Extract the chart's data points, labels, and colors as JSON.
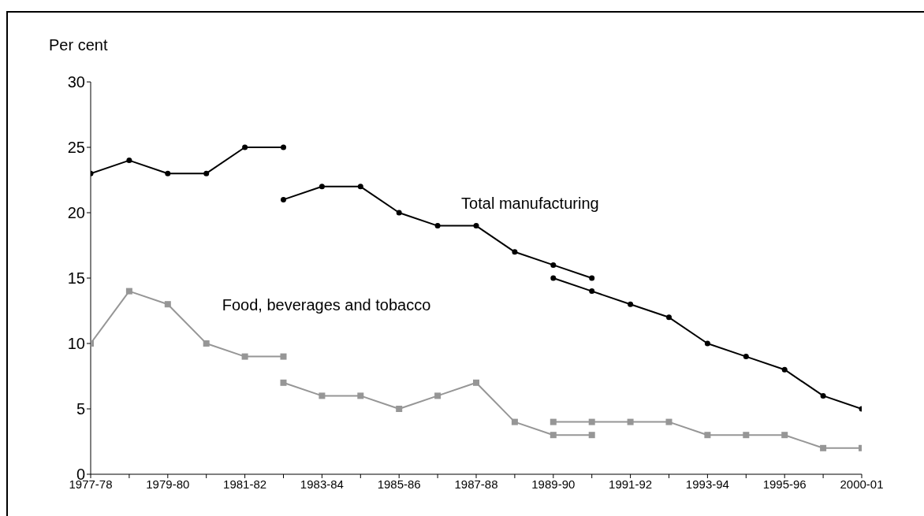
{
  "chart_data": {
    "type": "line",
    "ylabel": "Per cent",
    "categories": [
      "1977-78",
      null,
      "1979-80",
      null,
      "1981-82",
      null,
      "1983-84",
      null,
      "1985-86",
      null,
      "1987-88",
      null,
      "1989-90",
      null,
      "1991-92",
      null,
      "1993-94",
      null,
      "1995-96",
      null,
      "2000-01"
    ],
    "ylim": [
      0,
      30
    ],
    "yticks": [
      0,
      5,
      10,
      15,
      20,
      25,
      30
    ],
    "grid": false,
    "legend": false,
    "series": [
      {
        "color": "#000000",
        "marker": "circle",
        "values": [
          23,
          24,
          23,
          23,
          25,
          25,
          null,
          null,
          null,
          null,
          null,
          null,
          null,
          null,
          null,
          null,
          null,
          null,
          null,
          null,
          null
        ]
      },
      {
        "name": "Total manufacturing",
        "color": "#000000",
        "marker": "circle",
        "values": [
          null,
          null,
          null,
          null,
          null,
          21,
          22,
          22,
          20,
          19,
          19,
          17,
          16,
          15,
          null,
          null,
          null,
          null,
          null,
          null,
          null
        ]
      },
      {
        "color": "#000000",
        "marker": "circle",
        "values": [
          null,
          null,
          null,
          null,
          null,
          null,
          null,
          null,
          null,
          null,
          null,
          null,
          15,
          14,
          13,
          12,
          10,
          9,
          8,
          6,
          5
        ]
      },
      {
        "name": "Food, beverages and tobacco",
        "color": "#969696",
        "marker": "square",
        "values": [
          10,
          14,
          13,
          10,
          9,
          9,
          null,
          null,
          null,
          null,
          null,
          null,
          null,
          null,
          null,
          null,
          null,
          null,
          null,
          null,
          null
        ]
      },
      {
        "color": "#969696",
        "marker": "square",
        "values": [
          null,
          null,
          null,
          null,
          null,
          7,
          6,
          6,
          5,
          6,
          7,
          4,
          3,
          3,
          null,
          null,
          null,
          null,
          null,
          null,
          null
        ]
      },
      {
        "color": "#969696",
        "marker": "square",
        "values": [
          null,
          null,
          null,
          null,
          null,
          null,
          null,
          null,
          null,
          null,
          null,
          null,
          4,
          4,
          4,
          4,
          3,
          3,
          3,
          2,
          2
        ]
      }
    ]
  }
}
